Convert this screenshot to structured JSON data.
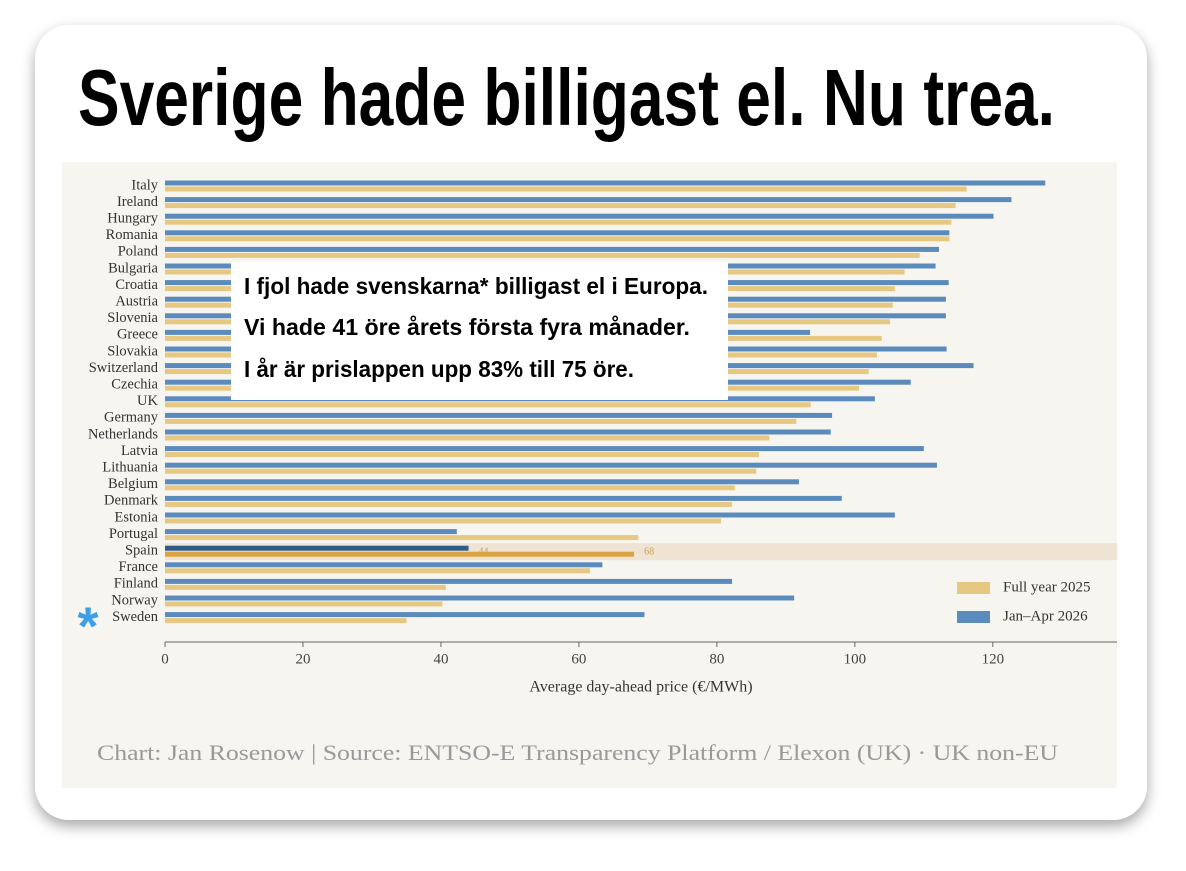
{
  "title": "Sverige hade billigast el. Nu trea.",
  "annotation": [
    "I fjol hade svenskarna* billigast el i Europa.",
    "Vi hade 41 öre årets första fyra månader.",
    "I år är prislappen upp 83% till 75 öre."
  ],
  "chart_data": {
    "type": "bar",
    "orientation": "horizontal",
    "categories": [
      "Italy",
      "Ireland",
      "Hungary",
      "Romania",
      "Poland",
      "Bulgaria",
      "Croatia",
      "Austria",
      "Slovenia",
      "Greece",
      "Slovakia",
      "Switzerland",
      "Czechia",
      "UK",
      "Germany",
      "Netherlands",
      "Latvia",
      "Lithuania",
      "Belgium",
      "Denmark",
      "Estonia",
      "Portugal",
      "Spain",
      "France",
      "Finland",
      "Norway",
      "Sweden"
    ],
    "series": [
      {
        "name": "Jan–Apr 2026",
        "color": "#5b8bbd",
        "values": [
          127.6,
          122.7,
          120.1,
          113.7,
          112.2,
          111.7,
          113.6,
          113.2,
          113.2,
          93.5,
          113.3,
          117.2,
          108.1,
          102.9,
          96.7,
          96.5,
          110,
          111.9,
          91.9,
          98.1,
          105.8,
          42.3,
          44,
          63.4,
          82.2,
          91.2,
          69.5
        ],
        "value_labels": [
          null,
          null,
          null,
          null,
          null,
          null,
          null,
          null,
          null,
          null,
          null,
          null,
          null,
          null,
          null,
          null,
          null,
          null,
          null,
          null,
          null,
          null,
          "44",
          null,
          null,
          null,
          null
        ]
      },
      {
        "name": "Full year 2025",
        "color": "#e6c883",
        "values": [
          116.2,
          114.6,
          114,
          113.7,
          109.4,
          107.2,
          105.8,
          105.5,
          105.1,
          103.9,
          103.2,
          102,
          100.6,
          93.6,
          91.5,
          87.6,
          86.1,
          85.7,
          82.6,
          82.2,
          80.6,
          68.6,
          68,
          61.6,
          40.7,
          40.2,
          35
        ],
        "value_labels": [
          null,
          null,
          null,
          null,
          null,
          null,
          null,
          null,
          null,
          null,
          null,
          null,
          null,
          null,
          null,
          null,
          null,
          null,
          null,
          null,
          null,
          null,
          "68",
          null,
          null,
          null,
          null
        ]
      }
    ],
    "xlabel": "Average day-ahead price (€/MWh)",
    "xlim": [
      0,
      138
    ],
    "xticks": [
      0,
      20,
      40,
      60,
      80,
      100,
      120
    ],
    "legend": "lower right",
    "highlight_marker": "*",
    "footer": "Chart: Jan Rosenow | Source: ENTSO-E Transparency Platform / Elexon (UK) · UK non-EU"
  }
}
